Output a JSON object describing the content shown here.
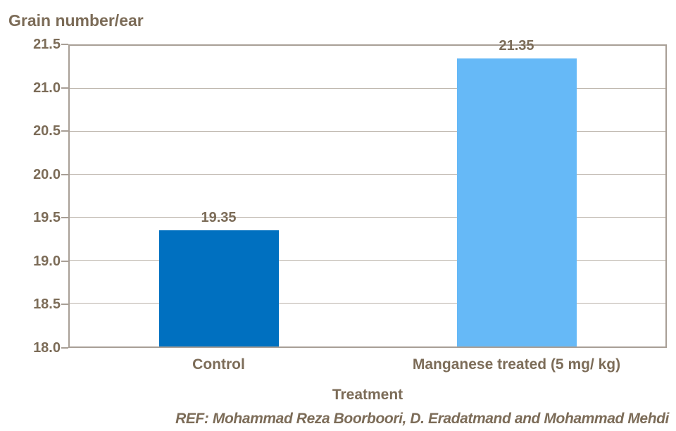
{
  "chart_data": {
    "type": "bar",
    "title": "",
    "ylabel": "Grain number/ear",
    "xlabel": "Treatment",
    "categories": [
      "Control",
      "Manganese treated (5 mg/ kg)"
    ],
    "values": [
      19.35,
      21.35
    ],
    "data_labels": [
      "19.35",
      "21.35"
    ],
    "bar_colors": [
      "#0070c0",
      "#66b9f7"
    ],
    "ylim": [
      18.0,
      21.5
    ],
    "ytick_step": 0.5,
    "yticks": [
      "21.5",
      "21.0",
      "20.5",
      "20.0",
      "19.5",
      "19.0",
      "18.5",
      "18.0"
    ],
    "grid": true,
    "legend": false
  },
  "footnote": "REF: Mohammad Reza Boorboori, D. Eradatmand and Mohammad Mehdi",
  "colors": {
    "text": "#7c6c58",
    "plot_border": "#a89f96",
    "gridline": "#bcb4ab",
    "background": "#ffffff",
    "bar_control": "#0070c0",
    "bar_manganese": "#66b9f7"
  }
}
